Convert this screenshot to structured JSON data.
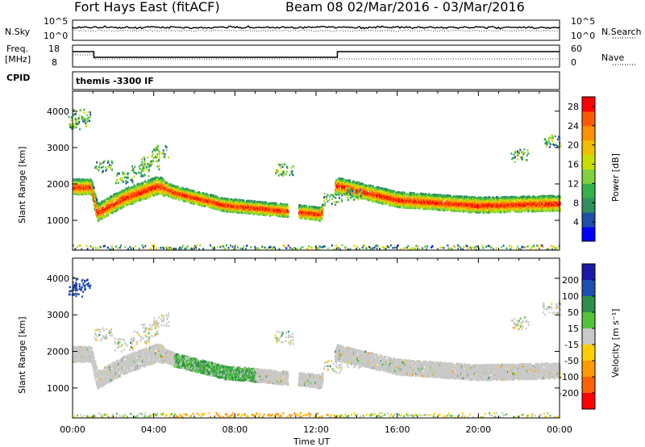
{
  "title_left": "Fort Hays East (fitACF)",
  "title_right": "Beam 08  02/Mar/2016 - 03/Mar/2016",
  "colors": {
    "power_scale": [
      "#0000ff",
      "#1f4fa8",
      "#2f8f5f",
      "#35b04a",
      "#7fd23c",
      "#c8e000",
      "#f0c000",
      "#ff9000",
      "#ff5a00",
      "#ff0000"
    ],
    "velocity_scale": [
      "#1a1aa8",
      "#1f4fb0",
      "#2c8f4a",
      "#52c43a",
      "#c9c9c9",
      "#ffd000",
      "#ff9a00",
      "#ff6000",
      "#ff0000"
    ],
    "velocity_ground": "#c9c9c9",
    "nsky_line": "#000000"
  },
  "strip": {
    "nsky_label": "N.Sky",
    "nsearch_label": "N.Search",
    "nsky_ticks": [
      "10^5",
      "10^0"
    ],
    "nsearch_ticks": [
      "10^5",
      "10^0"
    ],
    "freq_label_1": "Freq.",
    "freq_label_2": "[MHz]",
    "freq_ticks": [
      "18",
      "8"
    ],
    "nave_label": "Nave",
    "nave_ticks": [
      "60",
      "0"
    ],
    "cpid_label": "CPID",
    "cpid_value": "themis -3300 IF"
  },
  "chart_data": [
    {
      "type": "heatmap",
      "ylabel": "Slant Range [km]",
      "y_ticks": [
        1000,
        2000,
        3000,
        4000
      ],
      "xlim_hours": [
        0,
        24
      ],
      "x_tick_labels": [
        "00:00",
        "04:00",
        "08:00",
        "12:00",
        "16:00",
        "20:00",
        "00:00"
      ],
      "colorbar": {
        "label": "Power [dB]",
        "ticks": [
          4,
          8,
          12,
          16,
          20,
          24,
          28
        ],
        "range": [
          0,
          30
        ]
      },
      "band_centers_km": [
        [
          0.0,
          1950
        ],
        [
          0.9,
          1950
        ],
        [
          1.2,
          1250
        ],
        [
          2.5,
          1650
        ],
        [
          4.2,
          2000
        ],
        [
          5.0,
          1800
        ],
        [
          7.5,
          1450
        ],
        [
          9.5,
          1350
        ],
        [
          11.5,
          1250
        ],
        [
          12.2,
          1200
        ],
        [
          13.0,
          2000
        ],
        [
          16.0,
          1600
        ],
        [
          20.0,
          1450
        ],
        [
          23.9,
          1500
        ]
      ],
      "upper_scatter": [
        [
          0.2,
          3700
        ],
        [
          0.4,
          3900
        ],
        [
          1.5,
          2500
        ],
        [
          2.5,
          2200
        ],
        [
          3.3,
          2400
        ],
        [
          3.8,
          2600
        ],
        [
          4.3,
          2900
        ],
        [
          10.4,
          2400
        ],
        [
          12.8,
          1600
        ],
        [
          13.8,
          1750
        ],
        [
          22.0,
          2800
        ],
        [
          23.6,
          3200
        ]
      ],
      "near_range_band_km": 300
    },
    {
      "type": "heatmap",
      "ylabel": "Slant Range [km]",
      "y_ticks": [
        1000,
        2000,
        3000,
        4000
      ],
      "xlim_hours": [
        0,
        24
      ],
      "x_tick_labels": [
        "00:00",
        "04:00",
        "08:00",
        "12:00",
        "16:00",
        "20:00",
        "00:00"
      ],
      "xlabel": "Time UT",
      "colorbar": {
        "label": "Velocity [m s⁻¹]",
        "ticks": [
          200,
          100,
          50,
          15,
          -15,
          -50,
          -100,
          -200
        ]
      },
      "band_centers_km": [
        [
          0.0,
          1950
        ],
        [
          0.9,
          1950
        ],
        [
          1.2,
          1250
        ],
        [
          2.5,
          1650
        ],
        [
          4.2,
          2000
        ],
        [
          5.0,
          1800
        ],
        [
          7.5,
          1450
        ],
        [
          9.5,
          1350
        ],
        [
          11.5,
          1250
        ],
        [
          12.2,
          1200
        ],
        [
          13.0,
          2000
        ],
        [
          16.0,
          1600
        ],
        [
          20.0,
          1450
        ],
        [
          23.9,
          1500
        ]
      ],
      "fast_flow_segment_hours": [
        5.0,
        9.0
      ],
      "near_range_band_km": 300
    }
  ]
}
